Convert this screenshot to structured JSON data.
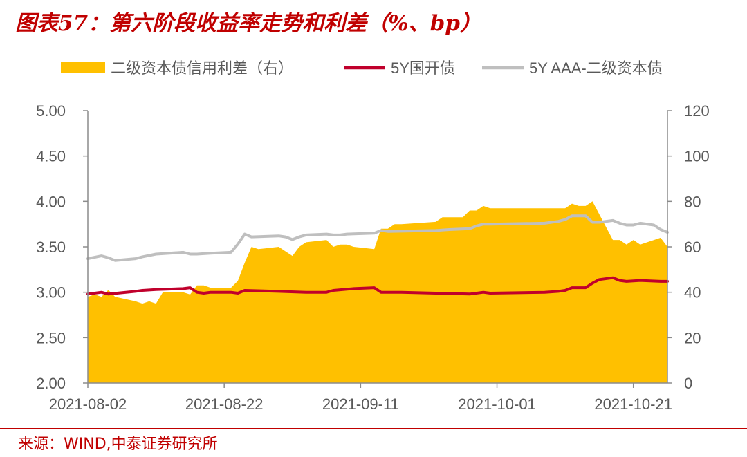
{
  "header": {
    "title": "图表57：第六阶段收益率走势和利差（%、bp）"
  },
  "footer": {
    "source": "来源：WIND,中泰证券研究所"
  },
  "colors": {
    "accent": "#c00000",
    "spread_fill": "#ffc000",
    "cdb_line": "#c0002c",
    "aaa_line": "#bfbfbf",
    "axis": "#8c8c8c",
    "text": "#595959"
  },
  "chart_data": {
    "type": "line",
    "x_start": "2021-08-02",
    "x_end": "2021-10-26",
    "x_ticks": [
      "2021-08-02",
      "2021-08-22",
      "2021-09-11",
      "2021-10-01",
      "2021-10-21"
    ],
    "y_left": {
      "min": 2.0,
      "max": 5.0,
      "ticks": [
        "5.00",
        "4.50",
        "4.00",
        "3.50",
        "3.00",
        "2.50",
        "2.00"
      ]
    },
    "y_right": {
      "min": 0,
      "max": 120,
      "ticks": [
        "120",
        "100",
        "80",
        "60",
        "40",
        "20",
        "0"
      ]
    },
    "legend_position": "top",
    "grid": false,
    "series": [
      {
        "name": "二级资本债信用利差（右）",
        "kind": "area",
        "axis": "right",
        "color": "#ffc000",
        "points": [
          [
            "2021-08-02",
            38
          ],
          [
            "2021-08-03",
            39
          ],
          [
            "2021-08-04",
            38
          ],
          [
            "2021-08-05",
            41
          ],
          [
            "2021-08-06",
            38
          ],
          [
            "2021-08-09",
            36
          ],
          [
            "2021-08-10",
            35
          ],
          [
            "2021-08-11",
            36
          ],
          [
            "2021-08-12",
            35
          ],
          [
            "2021-08-13",
            40
          ],
          [
            "2021-08-16",
            40
          ],
          [
            "2021-08-17",
            39
          ],
          [
            "2021-08-18",
            43
          ],
          [
            "2021-08-19",
            43
          ],
          [
            "2021-08-20",
            42
          ],
          [
            "2021-08-23",
            42
          ],
          [
            "2021-08-24",
            45
          ],
          [
            "2021-08-25",
            53
          ],
          [
            "2021-08-26",
            60
          ],
          [
            "2021-08-27",
            59
          ],
          [
            "2021-08-30",
            60
          ],
          [
            "2021-08-31",
            58
          ],
          [
            "2021-09-01",
            56
          ],
          [
            "2021-09-02",
            60
          ],
          [
            "2021-09-03",
            62
          ],
          [
            "2021-09-06",
            63
          ],
          [
            "2021-09-07",
            60
          ],
          [
            "2021-09-08",
            61
          ],
          [
            "2021-09-09",
            61
          ],
          [
            "2021-09-10",
            60
          ],
          [
            "2021-09-13",
            59
          ],
          [
            "2021-09-14",
            68
          ],
          [
            "2021-09-15",
            68
          ],
          [
            "2021-09-16",
            70
          ],
          [
            "2021-09-17",
            70
          ],
          [
            "2021-09-22",
            71
          ],
          [
            "2021-09-23",
            73
          ],
          [
            "2021-09-24",
            73
          ],
          [
            "2021-09-26",
            73
          ],
          [
            "2021-09-27",
            76
          ],
          [
            "2021-09-28",
            76
          ],
          [
            "2021-09-29",
            78
          ],
          [
            "2021-09-30",
            77
          ],
          [
            "2021-10-08",
            77
          ],
          [
            "2021-10-11",
            77
          ],
          [
            "2021-10-12",
            79
          ],
          [
            "2021-10-13",
            78
          ],
          [
            "2021-10-14",
            78
          ],
          [
            "2021-10-15",
            80
          ],
          [
            "2021-10-18",
            63
          ],
          [
            "2021-10-19",
            63
          ],
          [
            "2021-10-20",
            61
          ],
          [
            "2021-10-21",
            63
          ],
          [
            "2021-10-22",
            61
          ],
          [
            "2021-10-25",
            64
          ],
          [
            "2021-10-26",
            60
          ]
        ]
      },
      {
        "name": "5Y国开债",
        "kind": "line",
        "axis": "left",
        "color": "#c0002c",
        "points": [
          [
            "2021-08-02",
            2.98
          ],
          [
            "2021-08-04",
            3.0
          ],
          [
            "2021-08-05",
            2.98
          ],
          [
            "2021-08-09",
            3.01
          ],
          [
            "2021-08-10",
            3.02
          ],
          [
            "2021-08-12",
            3.03
          ],
          [
            "2021-08-16",
            3.04
          ],
          [
            "2021-08-17",
            3.05
          ],
          [
            "2021-08-18",
            3.0
          ],
          [
            "2021-08-19",
            2.99
          ],
          [
            "2021-08-20",
            3.0
          ],
          [
            "2021-08-23",
            3.0
          ],
          [
            "2021-08-24",
            2.99
          ],
          [
            "2021-08-25",
            3.02
          ],
          [
            "2021-08-30",
            3.01
          ],
          [
            "2021-09-03",
            3.0
          ],
          [
            "2021-09-06",
            3.0
          ],
          [
            "2021-09-07",
            3.02
          ],
          [
            "2021-09-10",
            3.04
          ],
          [
            "2021-09-13",
            3.05
          ],
          [
            "2021-09-14",
            3.0
          ],
          [
            "2021-09-15",
            3.0
          ],
          [
            "2021-09-17",
            3.0
          ],
          [
            "2021-09-22",
            2.99
          ],
          [
            "2021-09-27",
            2.98
          ],
          [
            "2021-09-29",
            3.0
          ],
          [
            "2021-09-30",
            2.99
          ],
          [
            "2021-10-08",
            3.0
          ],
          [
            "2021-10-10",
            3.01
          ],
          [
            "2021-10-11",
            3.02
          ],
          [
            "2021-10-12",
            3.05
          ],
          [
            "2021-10-14",
            3.05
          ],
          [
            "2021-10-15",
            3.1
          ],
          [
            "2021-10-16",
            3.14
          ],
          [
            "2021-10-18",
            3.16
          ],
          [
            "2021-10-19",
            3.13
          ],
          [
            "2021-10-20",
            3.12
          ],
          [
            "2021-10-22",
            3.13
          ],
          [
            "2021-10-25",
            3.12
          ],
          [
            "2021-10-26",
            3.12
          ]
        ]
      },
      {
        "name": "5Y AAA-二级资本债",
        "kind": "line",
        "axis": "left",
        "color": "#bfbfbf",
        "points": [
          [
            "2021-08-02",
            3.37
          ],
          [
            "2021-08-04",
            3.4
          ],
          [
            "2021-08-05",
            3.38
          ],
          [
            "2021-08-06",
            3.35
          ],
          [
            "2021-08-09",
            3.37
          ],
          [
            "2021-08-10",
            3.39
          ],
          [
            "2021-08-12",
            3.42
          ],
          [
            "2021-08-16",
            3.44
          ],
          [
            "2021-08-17",
            3.42
          ],
          [
            "2021-08-18",
            3.42
          ],
          [
            "2021-08-20",
            3.43
          ],
          [
            "2021-08-23",
            3.44
          ],
          [
            "2021-08-24",
            3.53
          ],
          [
            "2021-08-25",
            3.64
          ],
          [
            "2021-08-26",
            3.61
          ],
          [
            "2021-08-30",
            3.62
          ],
          [
            "2021-08-31",
            3.61
          ],
          [
            "2021-09-01",
            3.58
          ],
          [
            "2021-09-02",
            3.61
          ],
          [
            "2021-09-03",
            3.63
          ],
          [
            "2021-09-06",
            3.64
          ],
          [
            "2021-09-07",
            3.63
          ],
          [
            "2021-09-08",
            3.63
          ],
          [
            "2021-09-09",
            3.64
          ],
          [
            "2021-09-13",
            3.65
          ],
          [
            "2021-09-14",
            3.68
          ],
          [
            "2021-09-15",
            3.67
          ],
          [
            "2021-09-22",
            3.68
          ],
          [
            "2021-09-24",
            3.69
          ],
          [
            "2021-09-27",
            3.7
          ],
          [
            "2021-09-28",
            3.73
          ],
          [
            "2021-09-29",
            3.75
          ],
          [
            "2021-09-30",
            3.75
          ],
          [
            "2021-10-08",
            3.76
          ],
          [
            "2021-10-10",
            3.78
          ],
          [
            "2021-10-11",
            3.8
          ],
          [
            "2021-10-12",
            3.84
          ],
          [
            "2021-10-14",
            3.84
          ],
          [
            "2021-10-15",
            3.77
          ],
          [
            "2021-10-16",
            3.77
          ],
          [
            "2021-10-18",
            3.79
          ],
          [
            "2021-10-19",
            3.76
          ],
          [
            "2021-10-20",
            3.74
          ],
          [
            "2021-10-21",
            3.74
          ],
          [
            "2021-10-22",
            3.76
          ],
          [
            "2021-10-24",
            3.74
          ],
          [
            "2021-10-25",
            3.69
          ],
          [
            "2021-10-26",
            3.66
          ]
        ]
      }
    ]
  }
}
